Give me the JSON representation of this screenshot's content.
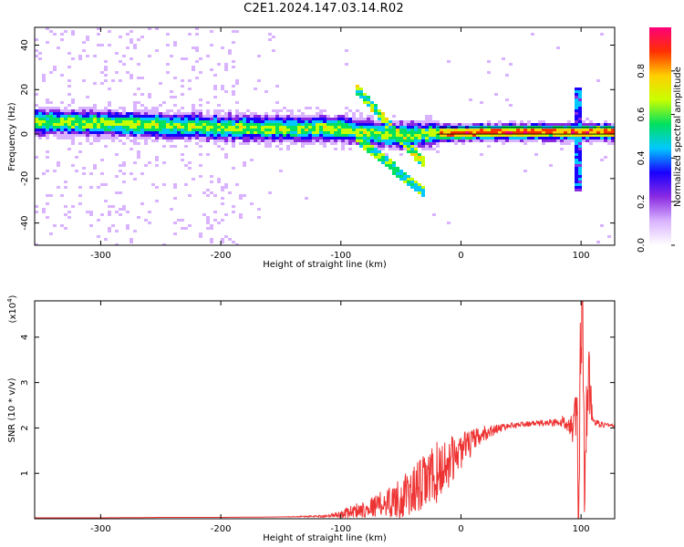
{
  "title": "C2E1.2024.147.03.14.R02",
  "colors": {
    "snr_line": "#ee3333",
    "colormap": [
      "#ffffff",
      "#d9b3ff",
      "#8a2be2",
      "#1a00ff",
      "#00c8ff",
      "#00e060",
      "#c8ff00",
      "#ffd000",
      "#ff3000",
      "#ff007a"
    ]
  },
  "chart_data": [
    {
      "type": "heatmap",
      "name": "spectrogram",
      "xlabel": "Height of straight line (km)",
      "ylabel": "Frequency (Hz)",
      "xlim": [
        -355,
        128
      ],
      "ylim": [
        -50,
        48
      ],
      "xticks": [
        -300,
        -200,
        -100,
        0,
        100
      ],
      "yticks": [
        -40,
        -20,
        0,
        20,
        40
      ],
      "colorbar": {
        "label": "Normalized spectral amplitude",
        "ticks": [
          0.0,
          0.2,
          0.4,
          0.6,
          0.8
        ],
        "range": [
          0,
          1
        ]
      },
      "ridge": {
        "x": [
          -355,
          -300,
          -250,
          -200,
          -150,
          -100,
          -80,
          -60,
          -40,
          -20,
          0,
          20,
          60,
          90,
          100,
          128
        ],
        "freq": [
          6,
          5.5,
          4.5,
          3.5,
          3,
          3,
          1,
          0,
          0,
          1,
          1,
          1.5,
          1.5,
          1.5,
          1.5,
          1.5
        ]
      },
      "reference_lines": [
        3,
        0
      ]
    },
    {
      "type": "line",
      "name": "snr",
      "xlabel": "Height of straight line (km)",
      "ylabel": "SNR (10 * v/v)",
      "y_exponent_label": "(x10",
      "y_exponent": "4",
      "xlim": [
        -355,
        128
      ],
      "ylim": [
        0,
        4.8
      ],
      "xticks": [
        -300,
        -200,
        -100,
        0,
        100
      ],
      "yticks": [
        1,
        2,
        3,
        4
      ],
      "x": [
        -355,
        -300,
        -250,
        -200,
        -150,
        -110,
        -100,
        -90,
        -80,
        -70,
        -60,
        -50,
        -40,
        -30,
        -20,
        -10,
        0,
        10,
        20,
        30,
        40,
        60,
        80,
        90,
        95,
        98,
        100,
        103,
        106,
        110,
        128
      ],
      "y": [
        0.02,
        0.02,
        0.03,
        0.03,
        0.04,
        0.06,
        0.1,
        0.17,
        0.22,
        0.3,
        0.38,
        0.45,
        0.6,
        0.8,
        1.0,
        1.25,
        1.5,
        1.7,
        1.88,
        1.98,
        2.05,
        2.1,
        2.12,
        2.12,
        2.1,
        0.5,
        4.6,
        1.0,
        3.2,
        2.1,
        2.05
      ],
      "y_noise": [
        0,
        0,
        0,
        0,
        0,
        0.03,
        0.08,
        0.15,
        0.2,
        0.25,
        0.35,
        0.45,
        0.55,
        0.65,
        0.7,
        0.55,
        0.4,
        0.28,
        0.18,
        0.1,
        0.06,
        0.06,
        0.1,
        0.2,
        0.6,
        2.5,
        2.8,
        1.2,
        1.0,
        0.1,
        0.03
      ]
    }
  ]
}
